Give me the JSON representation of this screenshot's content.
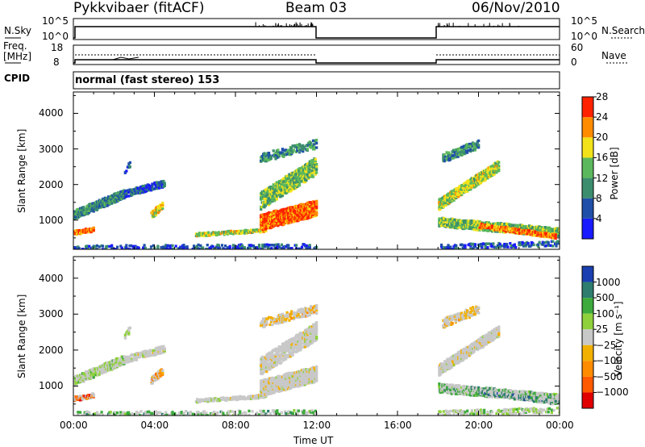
{
  "header": {
    "radar": "Pykkvibaer (fitACF)",
    "beam": "Beam 03",
    "date": "06/Nov/2010"
  },
  "panels": {
    "nsky_label": "N.Sky",
    "nsearch_label": "N.Search",
    "freq_label_line1": "Freq.",
    "freq_label_line2": "[MHz]",
    "nave_label": "Nave",
    "cpid_label": "CPID",
    "cpid_value": "normal (fast stereo) 153",
    "nsky_ticks": [
      "10^5",
      "10^0"
    ],
    "nsearch_ticks": [
      "10^5",
      "10^0"
    ],
    "freq_ticks": [
      "18",
      "8"
    ],
    "nave_ticks": [
      "60",
      "0"
    ]
  },
  "chart_data": [
    {
      "type": "heatmap",
      "name": "power",
      "ylabel": "Slant Range [km]",
      "xlabel": "Time UT",
      "x_ticks": [
        "00:00",
        "04:00",
        "08:00",
        "12:00",
        "16:00",
        "20:00",
        "00:00"
      ],
      "x_range_hours": [
        0,
        24
      ],
      "y_ticks": [
        1000,
        2000,
        3000,
        4000
      ],
      "ylim": [
        180,
        4600
      ],
      "colorbar_label": "Power [dB]",
      "colorbar_ticks": [
        "4",
        "8",
        "12",
        "16",
        "20",
        "24",
        "28"
      ],
      "colorbar_colors": [
        "#1a1aff",
        "#1f4fa8",
        "#3b8d6e",
        "#5cb85c",
        "#f2e21a",
        "#ff8c00",
        "#ff2200"
      ],
      "data_gaps_hours": [
        [
          12,
          18
        ]
      ]
    },
    {
      "type": "heatmap",
      "name": "velocity",
      "ylabel": "Slant Range [km]",
      "xlabel": "Time UT",
      "x_ticks": [
        "00:00",
        "04:00",
        "08:00",
        "12:00",
        "16:00",
        "20:00",
        "00:00"
      ],
      "x_range_hours": [
        0,
        24
      ],
      "y_ticks": [
        1000,
        2000,
        3000,
        4000
      ],
      "ylim": [
        180,
        4600
      ],
      "colorbar_label": "Velocity [m s⁻¹]",
      "colorbar_ticks": [
        "1000",
        "500",
        "100",
        "25",
        "−25",
        "−100",
        "−500",
        "−1000"
      ],
      "colorbar_colors": [
        "#1a3fb0",
        "#2e7d6e",
        "#3caa3c",
        "#8fd13c",
        "#c8c8c8",
        "#f2b000",
        "#ff8c00",
        "#ff5a00",
        "#e00000"
      ],
      "data_gaps_hours": [
        [
          12,
          18
        ]
      ]
    }
  ],
  "axis": {
    "time_label": "Time UT",
    "x_ticks": [
      "00:00",
      "04:00",
      "08:00",
      "12:00",
      "16:00",
      "20:00",
      "00:00"
    ],
    "range_label": "Slant Range [km]",
    "range_ticks": [
      "1000",
      "2000",
      "3000",
      "4000"
    ]
  }
}
